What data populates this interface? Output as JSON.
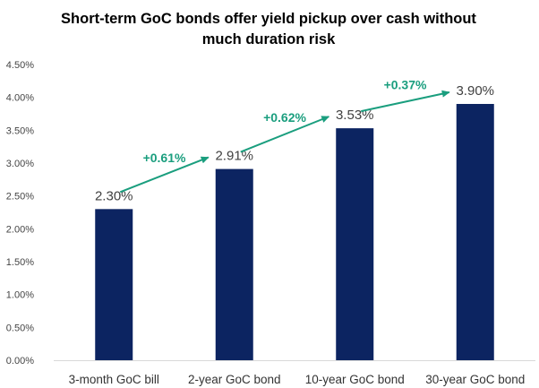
{
  "chart_data": {
    "type": "bar",
    "title": "Short-term GoC bonds offer yield pickup over cash without much duration risk",
    "title_lines": [
      "Short-term GoC bonds offer yield pickup over cash without",
      "much duration risk"
    ],
    "categories": [
      "3-month GoC bill",
      "2-year GoC bond",
      "10-year GoC bond",
      "30-year GoC bond"
    ],
    "values": [
      2.3,
      2.91,
      3.53,
      3.9
    ],
    "value_labels": [
      "2.30%",
      "2.91%",
      "3.53%",
      "3.90%"
    ],
    "ylim": [
      0,
      4.5
    ],
    "yticks": [
      0,
      0.5,
      1.0,
      1.5,
      2.0,
      2.5,
      3.0,
      3.5,
      4.0,
      4.5
    ],
    "ytick_labels": [
      "0.00%",
      "0.50%",
      "1.00%",
      "1.50%",
      "2.00%",
      "2.50%",
      "3.00%",
      "3.50%",
      "4.00%",
      "4.50%"
    ],
    "annotations": [
      {
        "text": "+0.61%",
        "from": 0,
        "to": 1
      },
      {
        "text": "+0.62%",
        "from": 1,
        "to": 2
      },
      {
        "text": "+0.37%",
        "from": 2,
        "to": 3
      }
    ],
    "grid": false,
    "legend": "none",
    "bar_color": "#0c2461",
    "annotation_color": "#1a9e7e"
  }
}
